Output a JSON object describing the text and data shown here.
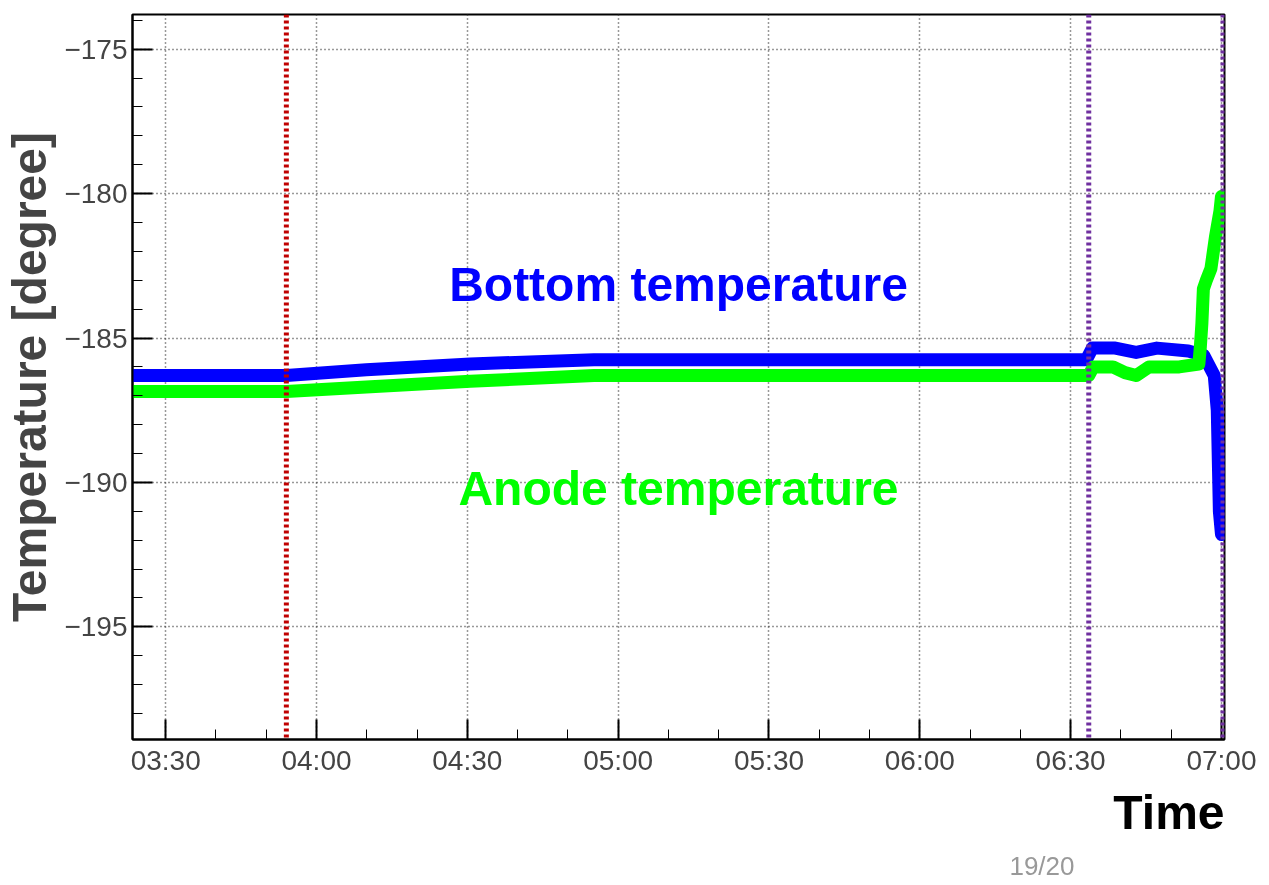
{
  "chart_data": {
    "type": "line",
    "xlabel": "Time",
    "ylabel": "Temperature [degree]",
    "xlim": [
      3.39,
      7.01
    ],
    "ylim": [
      -198.9,
      -173.8
    ],
    "xticks": [
      {
        "value": 3.5,
        "label": "03:30"
      },
      {
        "value": 3.6667,
        "label": null
      },
      {
        "value": 3.8333,
        "label": null
      },
      {
        "value": 4.0,
        "label": "04:00"
      },
      {
        "value": 4.1667,
        "label": null
      },
      {
        "value": 4.3333,
        "label": null
      },
      {
        "value": 4.5,
        "label": "04:30"
      },
      {
        "value": 4.6667,
        "label": null
      },
      {
        "value": 4.8333,
        "label": null
      },
      {
        "value": 5.0,
        "label": "05:00"
      },
      {
        "value": 5.1667,
        "label": null
      },
      {
        "value": 5.3333,
        "label": null
      },
      {
        "value": 5.5,
        "label": "05:30"
      },
      {
        "value": 5.6667,
        "label": null
      },
      {
        "value": 5.8333,
        "label": null
      },
      {
        "value": 6.0,
        "label": "06:00"
      },
      {
        "value": 6.1667,
        "label": null
      },
      {
        "value": 6.3333,
        "label": null
      },
      {
        "value": 6.5,
        "label": "06:30"
      },
      {
        "value": 6.6667,
        "label": null
      },
      {
        "value": 6.8333,
        "label": null
      },
      {
        "value": 7.0,
        "label": "07:00"
      }
    ],
    "yticks": [
      {
        "value": -198,
        "label": null
      },
      {
        "value": -197,
        "label": null
      },
      {
        "value": -196,
        "label": null
      },
      {
        "value": -195,
        "label": "−195"
      },
      {
        "value": -194,
        "label": null
      },
      {
        "value": -193,
        "label": null
      },
      {
        "value": -192,
        "label": null
      },
      {
        "value": -191,
        "label": null
      },
      {
        "value": -190,
        "label": "−190"
      },
      {
        "value": -189,
        "label": null
      },
      {
        "value": -188,
        "label": null
      },
      {
        "value": -187,
        "label": null
      },
      {
        "value": -186,
        "label": null
      },
      {
        "value": -185,
        "label": "−185"
      },
      {
        "value": -184,
        "label": null
      },
      {
        "value": -183,
        "label": null
      },
      {
        "value": -182,
        "label": null
      },
      {
        "value": -181,
        "label": null
      },
      {
        "value": -180,
        "label": "−180"
      },
      {
        "value": -179,
        "label": null
      },
      {
        "value": -178,
        "label": null
      },
      {
        "value": -177,
        "label": null
      },
      {
        "value": -176,
        "label": null
      },
      {
        "value": -175,
        "label": "−175"
      },
      {
        "value": -174,
        "label": null
      }
    ],
    "grid": true,
    "line_style": "solid",
    "marker": "none",
    "series": [
      {
        "name": "Bottom temperature",
        "color": "#0000ff",
        "x": [
          3.39,
          3.9,
          4.165,
          4.51,
          4.92,
          6.528,
          6.552,
          6.572,
          6.648,
          6.717,
          6.786,
          6.89,
          6.941,
          6.976,
          6.986,
          6.99,
          6.993,
          7.0
        ],
        "values": [
          -186.3,
          -186.3,
          -186.1,
          -185.9,
          -185.75,
          -185.75,
          -185.75,
          -185.35,
          -185.35,
          -185.5,
          -185.35,
          -185.45,
          -185.6,
          -186.3,
          -187.5,
          -189.5,
          -191.0,
          -191.8
        ]
      },
      {
        "name": "Anode temperature",
        "color": "#00ff00",
        "x": [
          3.39,
          3.9,
          4.165,
          4.51,
          4.92,
          6.528,
          6.56,
          6.575,
          6.64,
          6.68,
          6.717,
          6.76,
          6.86,
          6.925,
          6.93,
          6.935,
          6.94,
          6.95,
          6.965,
          6.98,
          6.995,
          7.0
        ],
        "values": [
          -186.85,
          -186.85,
          -186.7,
          -186.5,
          -186.3,
          -186.3,
          -186.3,
          -186.0,
          -186.0,
          -186.2,
          -186.3,
          -186.0,
          -186.0,
          -185.9,
          -185.3,
          -184.5,
          -183.3,
          -183.0,
          -182.6,
          -181.5,
          -180.6,
          -180.1
        ]
      }
    ],
    "ref_lines": [
      {
        "axis": "x",
        "value": 3.9,
        "color": "#c00000",
        "line_style": "dotted"
      },
      {
        "axis": "x",
        "value": 6.56,
        "color": "#7030a0",
        "line_style": "dotted"
      },
      {
        "axis": "x",
        "value": 7.005,
        "color": "#7030a0",
        "line_style": "dotted"
      }
    ],
    "annotations": [
      "19/20"
    ]
  }
}
